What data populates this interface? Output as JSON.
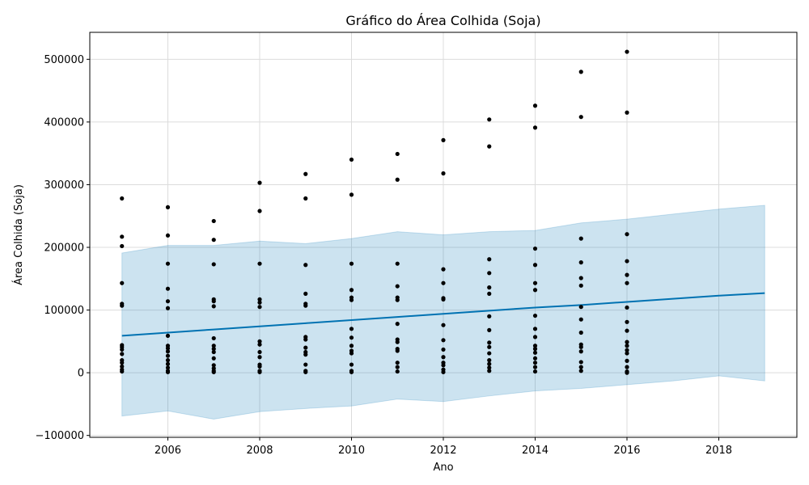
{
  "chart_data": {
    "type": "scatter",
    "title": "Gráfico do Área Colhida (Soja)",
    "xlabel": "Ano",
    "ylabel": "Área Colhida (Soja)",
    "xlim": [
      2004.3,
      2019.7
    ],
    "ylim": [
      -103000,
      543000
    ],
    "x_ticks": [
      2006,
      2008,
      2010,
      2012,
      2014,
      2016,
      2018
    ],
    "y_ticks": [
      -100000,
      0,
      100000,
      200000,
      300000,
      400000,
      500000
    ],
    "y_tick_labels": [
      "−100000",
      "0",
      "100000",
      "200000",
      "300000",
      "400000",
      "500000"
    ],
    "grid": true,
    "colors": {
      "points": "#000000",
      "trend": "#0072b2",
      "band": "#0072b2"
    },
    "scatter": [
      {
        "x": 2005,
        "y": [
          278000,
          217000,
          202000,
          143000,
          110000,
          107000,
          44000,
          41000,
          37000,
          30000,
          20000,
          16000,
          10000,
          5000,
          2000
        ]
      },
      {
        "x": 2006,
        "y": [
          264000,
          219000,
          174000,
          134000,
          114000,
          103000,
          59000,
          43000,
          39000,
          34000,
          27000,
          20000,
          14000,
          8000,
          3000,
          1000
        ]
      },
      {
        "x": 2007,
        "y": [
          242000,
          212000,
          173000,
          117000,
          114000,
          106000,
          55000,
          43000,
          38000,
          33000,
          23000,
          12000,
          7000,
          3000,
          1000
        ]
      },
      {
        "x": 2008,
        "y": [
          303000,
          258000,
          174000,
          117000,
          112000,
          105000,
          50000,
          45000,
          33000,
          25000,
          13000,
          10000,
          3000,
          1000
        ]
      },
      {
        "x": 2009,
        "y": [
          317000,
          278000,
          172000,
          126000,
          110000,
          107000,
          57000,
          53000,
          40000,
          33000,
          29000,
          13000,
          3000,
          1000
        ]
      },
      {
        "x": 2010,
        "y": [
          340000,
          284000,
          174000,
          132000,
          120000,
          116000,
          70000,
          56000,
          43000,
          35000,
          31000,
          13000,
          3000,
          1000
        ]
      },
      {
        "x": 2011,
        "y": [
          349000,
          308000,
          174000,
          138000,
          120000,
          116000,
          78000,
          53000,
          49000,
          38000,
          35000,
          16000,
          9000,
          2000
        ]
      },
      {
        "x": 2012,
        "y": [
          371000,
          318000,
          165000,
          143000,
          119000,
          117000,
          76000,
          52000,
          37000,
          25000,
          16000,
          12000,
          5000,
          1000
        ]
      },
      {
        "x": 2013,
        "y": [
          404000,
          361000,
          181000,
          159000,
          136000,
          126000,
          90000,
          68000,
          48000,
          41000,
          31000,
          20000,
          14000,
          8000,
          3000
        ]
      },
      {
        "x": 2014,
        "y": [
          426000,
          391000,
          198000,
          172000,
          143000,
          132000,
          91000,
          70000,
          57000,
          43000,
          38000,
          32000,
          23000,
          16000,
          9000,
          2000
        ]
      },
      {
        "x": 2015,
        "y": [
          480000,
          408000,
          214000,
          176000,
          151000,
          139000,
          105000,
          85000,
          64000,
          45000,
          41000,
          34000,
          17000,
          9000,
          3000
        ]
      },
      {
        "x": 2016,
        "y": [
          512000,
          415000,
          221000,
          178000,
          156000,
          143000,
          104000,
          81000,
          67000,
          49000,
          43000,
          36000,
          31000,
          19000,
          9000,
          2000,
          0
        ]
      }
    ],
    "trend": {
      "x": [
        2005,
        2006,
        2007,
        2008,
        2009,
        2010,
        2011,
        2012,
        2013,
        2014,
        2015,
        2016,
        2017,
        2018,
        2019
      ],
      "y": [
        59000,
        64000,
        69000,
        74000,
        79000,
        84000,
        89000,
        94000,
        99000,
        104000,
        108000,
        113000,
        118000,
        123000,
        127000
      ]
    },
    "band": {
      "x": [
        2005,
        2006,
        2007,
        2008,
        2009,
        2010,
        2011,
        2012,
        2013,
        2014,
        2015,
        2016,
        2017,
        2018,
        2019
      ],
      "upper": [
        191000,
        203000,
        203000,
        210000,
        206000,
        214000,
        225000,
        220000,
        225000,
        227000,
        239000,
        245000,
        253000,
        261000,
        267000
      ],
      "lower": [
        -69000,
        -61000,
        -74000,
        -62000,
        -57000,
        -53000,
        -42000,
        -46000,
        -37000,
        -29000,
        -25000,
        -19000,
        -13000,
        -5000,
        -13000
      ]
    }
  }
}
